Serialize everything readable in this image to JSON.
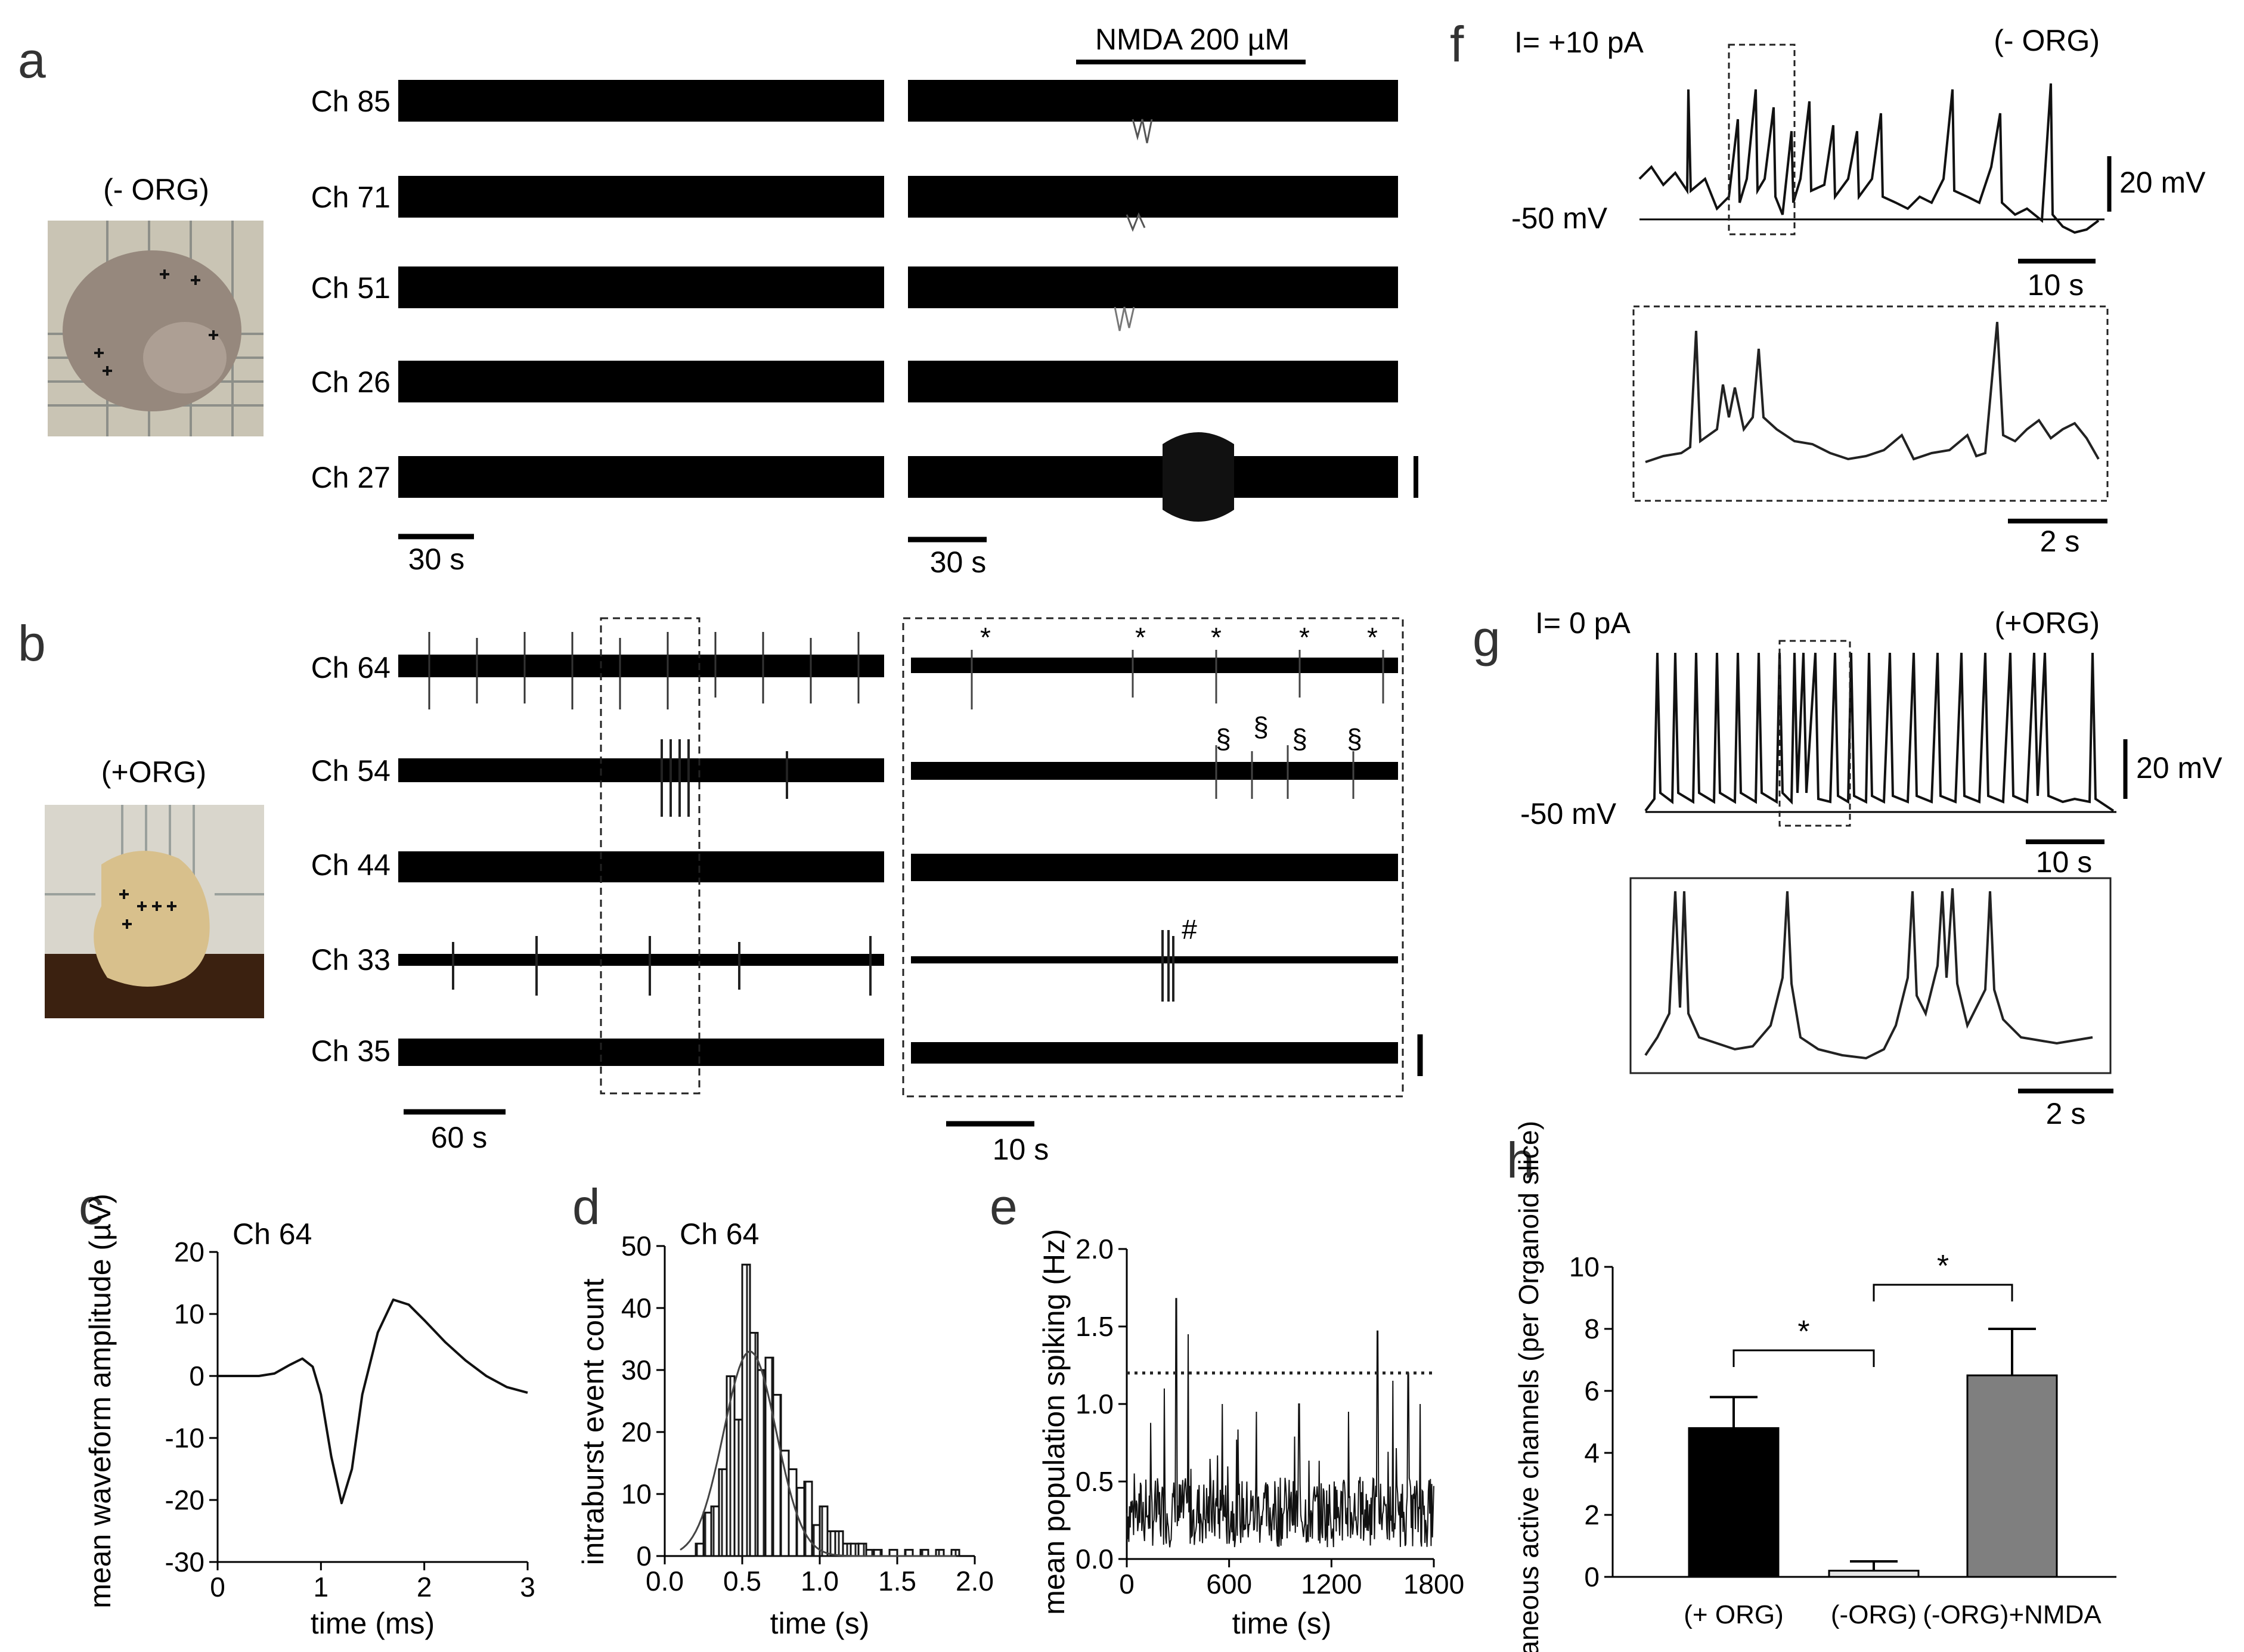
{
  "panels": {
    "a": {
      "letter": "a",
      "photo_label": "(- ORG)",
      "channels": [
        "Ch 85",
        "Ch 71",
        "Ch 51",
        "Ch 26",
        "Ch 27"
      ],
      "drug_label": "NMDA 200 µM",
      "scale_left": "30 s",
      "scale_right": "30 s"
    },
    "b": {
      "letter": "b",
      "photo_label": "(+ORG)",
      "channels": [
        "Ch 64",
        "Ch 54",
        "Ch 44",
        "Ch 33",
        "Ch 35"
      ],
      "scale_left": "60 s",
      "scale_right": "10 s",
      "marker_star": "*",
      "marker_section": "§",
      "marker_hash": "#"
    },
    "c": {
      "letter": "c",
      "title": "Ch 64"
    },
    "d": {
      "letter": "d",
      "title": "Ch 64"
    },
    "e": {
      "letter": "e"
    },
    "f": {
      "letter": "f",
      "current": "I= +10 pA",
      "condition": "(- ORG)",
      "baseline": "-50 mV",
      "vscale": "20 mV",
      "tscale": "10 s",
      "inset_tscale": "2 s"
    },
    "g": {
      "letter": "g",
      "current": "I= 0 pA",
      "condition": "(+ORG)",
      "baseline": "-50 mV",
      "vscale": "20 mV",
      "tscale": "10 s",
      "inset_tscale": "2 s"
    },
    "h": {
      "letter": "h",
      "sig_marker": "*"
    }
  },
  "chart_data": [
    {
      "id": "c",
      "type": "line",
      "title": "Ch 64",
      "xlabel": "time (ms)",
      "ylabel": "mean waveform amplitude (µV)",
      "xlim": [
        0,
        3
      ],
      "ylim": [
        -30,
        20
      ],
      "xticks": [
        0,
        1,
        2,
        3
      ],
      "yticks": [
        -30,
        -20,
        -10,
        0,
        10,
        20
      ],
      "x": [
        0,
        0.2,
        0.4,
        0.55,
        0.7,
        0.82,
        0.92,
        1.0,
        1.1,
        1.2,
        1.3,
        1.4,
        1.55,
        1.7,
        1.85,
        2.0,
        2.2,
        2.4,
        2.6,
        2.8,
        3.0
      ],
      "y": [
        0,
        0,
        0,
        0.4,
        1.8,
        2.8,
        1.5,
        -3,
        -13,
        -20.5,
        -15,
        -3,
        7,
        12.3,
        11.5,
        9,
        5.5,
        2.5,
        0,
        -1.8,
        -2.7
      ]
    },
    {
      "id": "d",
      "type": "bar",
      "title": "Ch 64",
      "xlabel": "time (s)",
      "ylabel": "intraburst event count",
      "xlim": [
        0,
        2
      ],
      "ylim": [
        0,
        50
      ],
      "xticks": [
        0.0,
        0.5,
        1.0,
        1.5,
        2.0
      ],
      "yticks": [
        0,
        10,
        20,
        30,
        40,
        50
      ],
      "bin_width": 0.05,
      "bin_starts": [
        0.2,
        0.25,
        0.3,
        0.35,
        0.4,
        0.45,
        0.5,
        0.55,
        0.6,
        0.65,
        0.7,
        0.75,
        0.8,
        0.85,
        0.9,
        0.95,
        1.0,
        1.05,
        1.1,
        1.15,
        1.2,
        1.25,
        1.3,
        1.35,
        1.45,
        1.55,
        1.65,
        1.75,
        1.85
      ],
      "values": [
        2,
        7,
        8,
        14,
        29,
        22,
        47,
        36,
        30,
        32,
        26,
        17,
        14,
        11,
        12,
        5,
        8,
        4,
        4,
        2,
        2,
        2,
        1,
        1,
        1,
        1,
        1,
        1,
        1
      ],
      "fit": {
        "type": "gaussian",
        "peak": 33,
        "mean": 0.55,
        "sd": 0.17
      }
    },
    {
      "id": "e",
      "type": "line",
      "xlabel": "time (s)",
      "ylabel": "mean population spiking (Hz)",
      "xlim": [
        0,
        1800
      ],
      "ylim": [
        0,
        2
      ],
      "xticks": [
        0,
        600,
        1200,
        1800
      ],
      "yticks": [
        0.0,
        0.5,
        1.0,
        1.5,
        2.0
      ],
      "threshold": 1.2,
      "mean_level": 0.3,
      "peaks": [
        {
          "x": 220,
          "y": 1.1
        },
        {
          "x": 290,
          "y": 1.68
        },
        {
          "x": 360,
          "y": 1.45
        },
        {
          "x": 560,
          "y": 1.0
        },
        {
          "x": 760,
          "y": 0.95
        },
        {
          "x": 1010,
          "y": 1.0
        },
        {
          "x": 1300,
          "y": 0.95
        },
        {
          "x": 1470,
          "y": 1.47
        },
        {
          "x": 1560,
          "y": 1.15
        },
        {
          "x": 1650,
          "y": 1.2
        },
        {
          "x": 1720,
          "y": 1.0
        }
      ]
    },
    {
      "id": "h",
      "type": "bar",
      "ylabel": "spontaneous active channels (per Organoid slice)",
      "categories": [
        "(+ ORG)",
        "(-ORG)",
        "(-ORG)+NMDA"
      ],
      "values": [
        4.8,
        0.2,
        6.5
      ],
      "errors": [
        1.0,
        0.3,
        1.5
      ],
      "colors": [
        "#000000",
        "#e5e5e5",
        "#7f7f7f"
      ],
      "ylim": [
        0,
        10
      ],
      "yticks": [
        0,
        2,
        4,
        6,
        8,
        10
      ],
      "significance": [
        {
          "between": [
            0,
            1
          ],
          "label": "*"
        },
        {
          "between": [
            1,
            2
          ],
          "label": "*"
        }
      ]
    }
  ]
}
